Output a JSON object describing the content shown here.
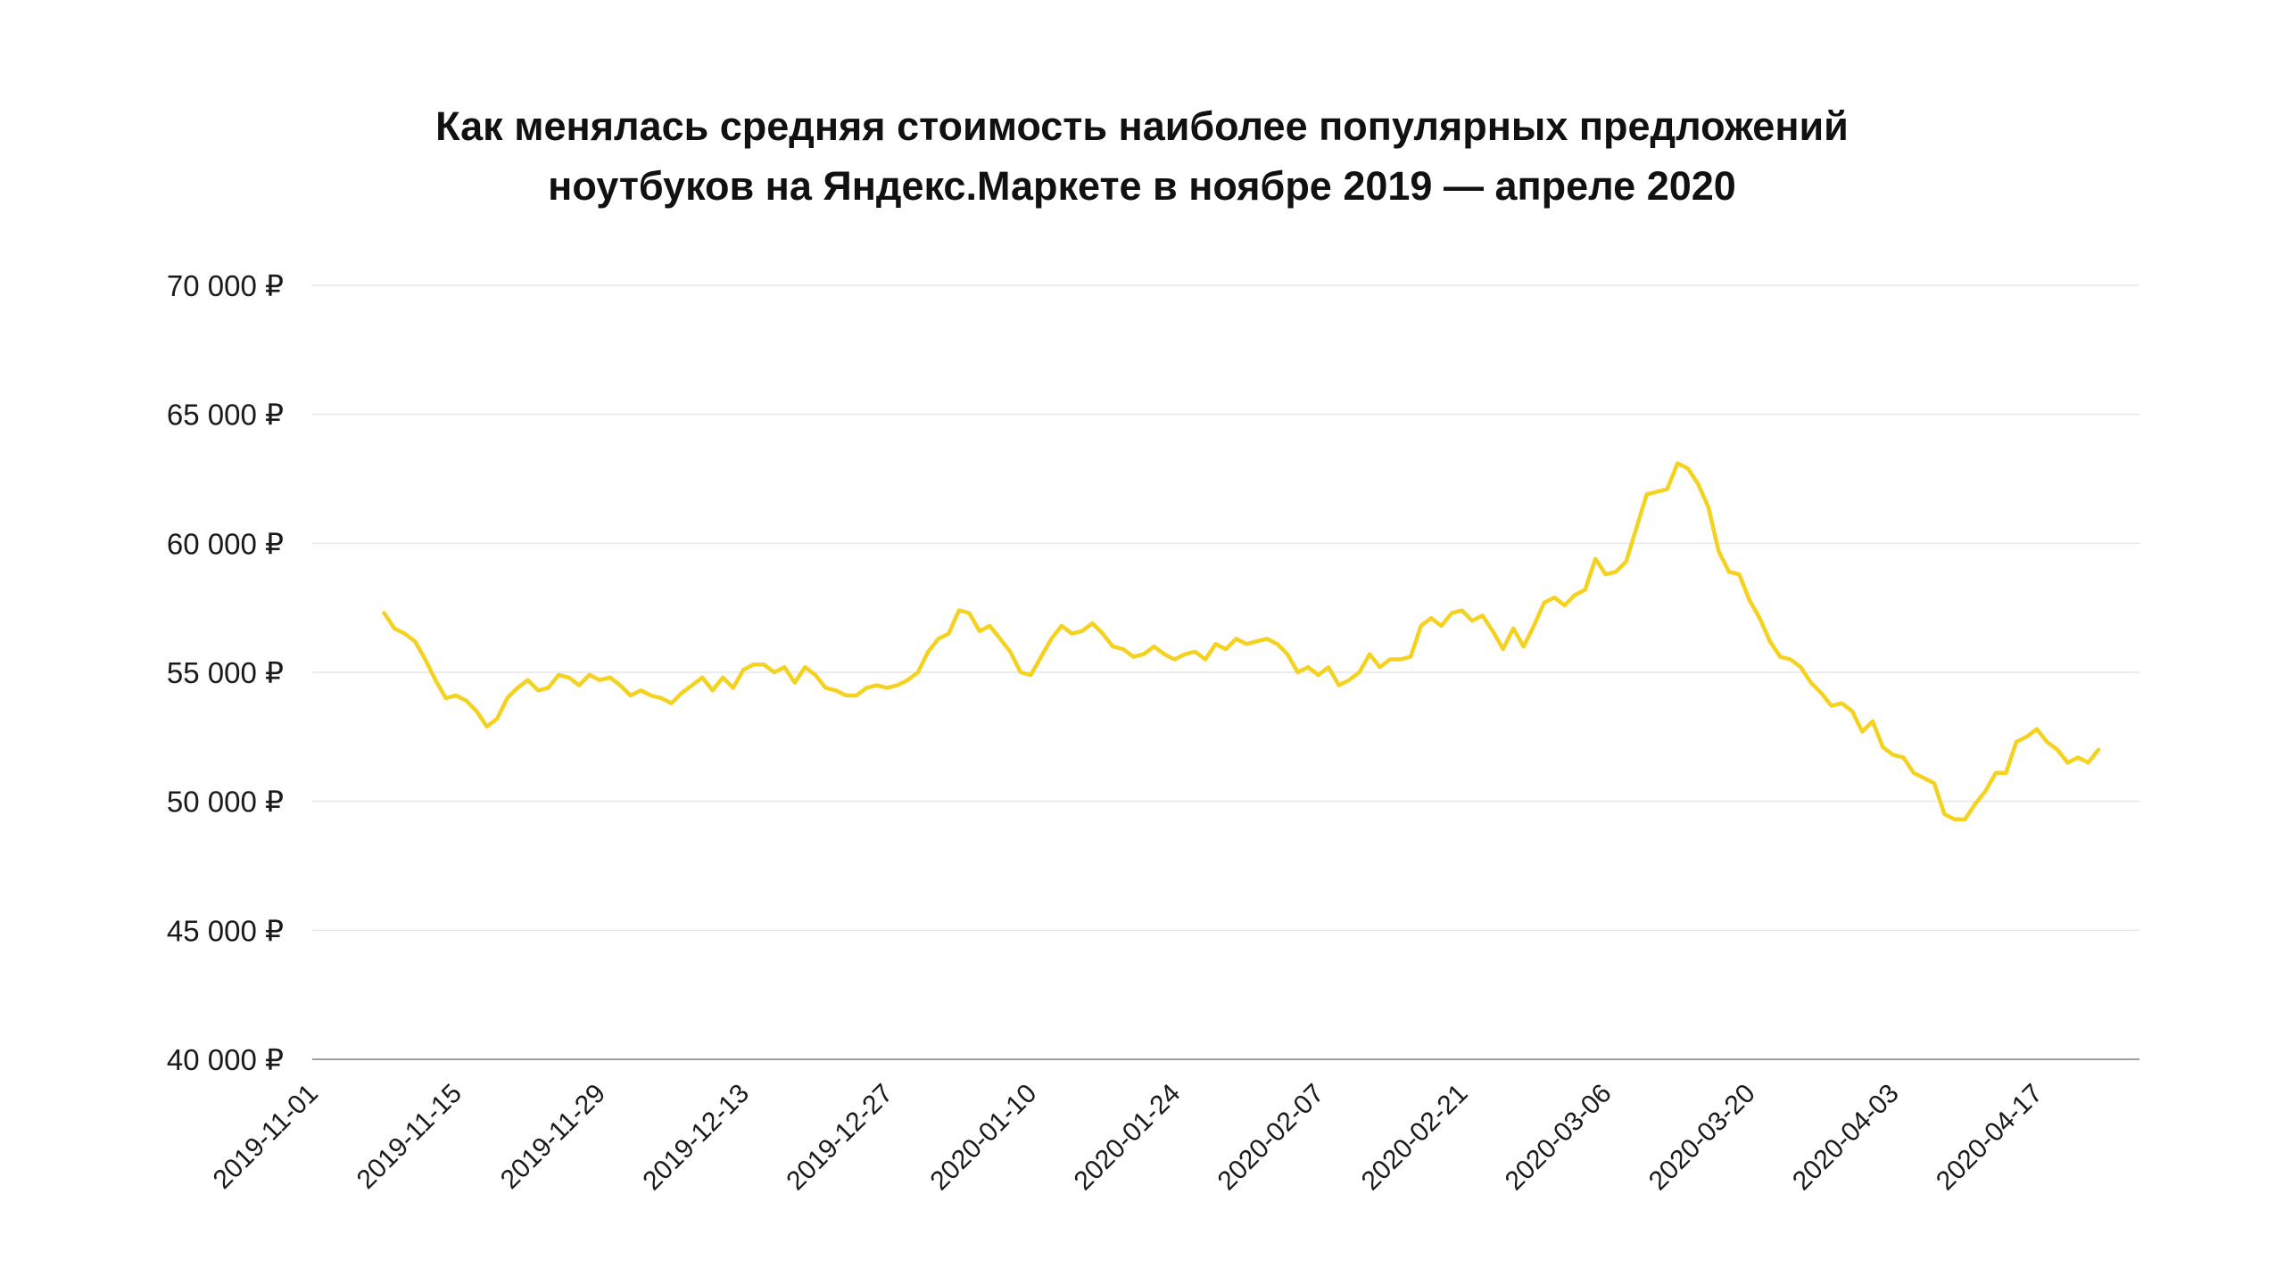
{
  "chart_data": {
    "type": "line",
    "title": "Как менялась средняя стоимость наиболее популярных предложений ноутбуков на Яндекс.Маркете в ноябре 2019 — апреле 2020",
    "title_lines": [
      "Как менялась средняя стоимость наиболее популярных предложений",
      "ноутбуков на Яндекс.Маркете в ноябре 2019 — апреле 2020"
    ],
    "xlabel": "",
    "ylabel": "",
    "ylim": [
      40000,
      70000
    ],
    "yticks": [
      {
        "value": 70000,
        "label": "70 000 ₽"
      },
      {
        "value": 65000,
        "label": "65 000 ₽"
      },
      {
        "value": 60000,
        "label": "60 000 ₽"
      },
      {
        "value": 55000,
        "label": "55 000 ₽"
      },
      {
        "value": 50000,
        "label": "50 000 ₽"
      },
      {
        "value": 45000,
        "label": "45 000 ₽"
      },
      {
        "value": 40000,
        "label": "40 000 ₽"
      }
    ],
    "xlim": [
      "2019-11-01",
      "2020-04-27"
    ],
    "xticks": [
      "2019-11-01",
      "2019-11-15",
      "2019-11-29",
      "2019-12-13",
      "2019-12-27",
      "2020-01-10",
      "2020-01-24",
      "2020-02-07",
      "2020-02-21",
      "2020-03-06",
      "2020-03-20",
      "2020-04-03",
      "2020-04-17"
    ],
    "grid": true,
    "line_color": "#F4D21F",
    "series": [
      {
        "start_date": "2019-11-08",
        "values": [
          57300,
          56700,
          56500,
          56200,
          55500,
          54700,
          54000,
          54100,
          53900,
          53500,
          52900,
          53200,
          54000,
          54400,
          54700,
          54300,
          54400,
          54900,
          54800,
          54500,
          54900,
          54700,
          54800,
          54500,
          54100,
          54300,
          54100,
          54000,
          53800,
          54200,
          54500,
          54800,
          54300,
          54800,
          54400,
          55100,
          55300,
          55300,
          55000,
          55200,
          54600,
          55200,
          54900,
          54400,
          54300,
          54100,
          54100,
          54400,
          54500,
          54400,
          54500,
          54700,
          55000,
          55800,
          56300,
          56500,
          57400,
          57300,
          56600,
          56800,
          56300,
          55800,
          55000,
          54900,
          55600,
          56300,
          56800,
          56500,
          56600,
          56900,
          56500,
          56000,
          55900,
          55600,
          55700,
          56000,
          55700,
          55500,
          55700,
          55800,
          55500,
          56100,
          55900,
          56300,
          56100,
          56200,
          56300,
          56100,
          55700,
          55000,
          55200,
          54900,
          55200,
          54500,
          54700,
          55000,
          55700,
          55200,
          55500,
          55500,
          55600,
          56800,
          57100,
          56800,
          57300,
          57400,
          57000,
          57200,
          56600,
          55900,
          56700,
          56000,
          56800,
          57700,
          57900,
          57600,
          58000,
          58200,
          59400,
          58800,
          58900,
          59300,
          60600,
          61900,
          62000,
          62100,
          63100,
          62900,
          62300,
          61400,
          59700,
          58900,
          58800,
          57800,
          57100,
          56200,
          55600,
          55500,
          55200,
          54600,
          54200,
          53700,
          53800,
          53500,
          52700,
          53100,
          52100,
          51800,
          51700,
          51100,
          50900,
          50700,
          49500,
          49300,
          49300,
          49900,
          50400,
          51100,
          51100,
          52300,
          52500,
          52800,
          52300,
          52000,
          51500,
          51700,
          51500,
          52000
        ]
      }
    ]
  }
}
